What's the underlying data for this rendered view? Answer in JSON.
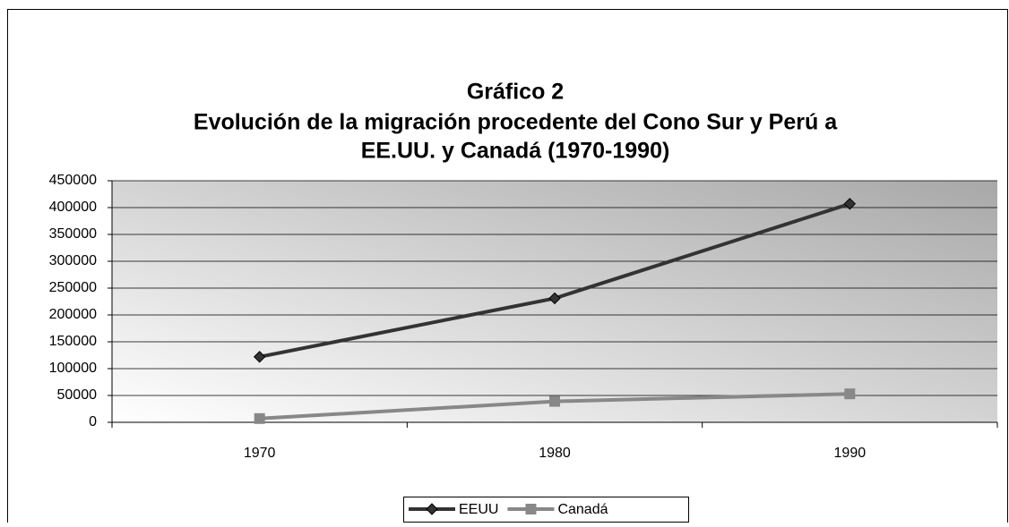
{
  "chart_data": {
    "type": "line",
    "title": [
      "Gráfico 2",
      "Evolución de la migración procedente del Cono Sur y Perú a",
      "EE.UU. y Canadá (1970-1990)"
    ],
    "categories": [
      "1970",
      "1980",
      "1990"
    ],
    "series": [
      {
        "name": "EEUU",
        "color": "#333333",
        "marker": "diamond",
        "values": [
          122000,
          231000,
          407000
        ]
      },
      {
        "name": "Canadá",
        "color": "#888888",
        "marker": "square",
        "values": [
          7000,
          39000,
          53000
        ]
      }
    ],
    "ylim": [
      0,
      450000
    ],
    "yticks": [
      0,
      50000,
      100000,
      150000,
      200000,
      250000,
      300000,
      350000,
      400000,
      450000
    ],
    "grid": true,
    "legend": "bottom"
  }
}
